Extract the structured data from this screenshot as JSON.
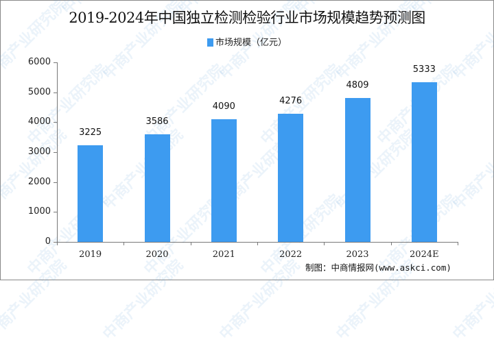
{
  "title": "2019-2024年中国独立检测检验行业市场规模趋势预测图",
  "legend": {
    "label": "市场规模（亿元）",
    "color": "#3d9bf0"
  },
  "source": "制图：中商情报网(www.askci.com)",
  "watermark": "中商产业研究院",
  "chart_data": {
    "type": "bar",
    "title": "2019-2024年中国独立检测检验行业市场规模趋势预测图",
    "categories": [
      "2019",
      "2020",
      "2021",
      "2022",
      "2023",
      "2024E"
    ],
    "series": [
      {
        "name": "市场规模（亿元）",
        "values": [
          3225,
          3586,
          4090,
          4276,
          4809,
          5333
        ],
        "color": "#3d9bf0"
      }
    ],
    "xlabel": "",
    "ylabel": "",
    "ylim": [
      0,
      6000
    ],
    "yticks": [
      0,
      1000,
      2000,
      3000,
      4000,
      5000,
      6000
    ],
    "grid": false,
    "legend_position": "top"
  }
}
